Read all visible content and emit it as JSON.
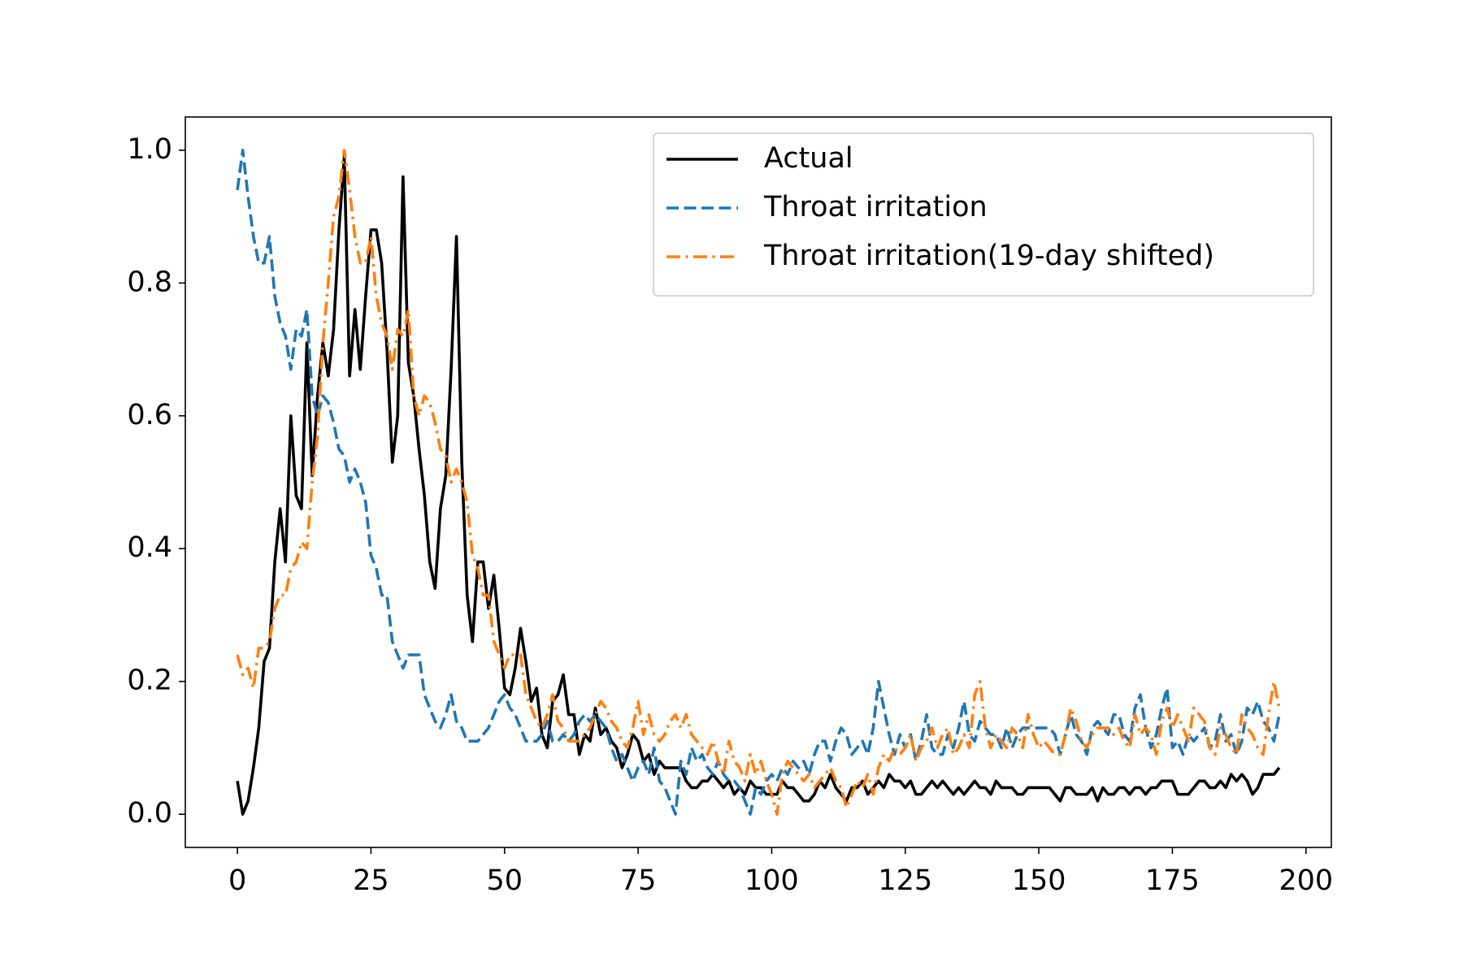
{
  "chart_data": {
    "type": "line",
    "legend": "upper right",
    "grid": false,
    "xlim": [
      -9.75,
      204.75
    ],
    "ylim": [
      -0.05,
      1.05
    ],
    "xticks": [
      0,
      25,
      50,
      75,
      100,
      125,
      150,
      175,
      200
    ],
    "yticks": [
      {
        "value": 0,
        "label": "0.0"
      },
      {
        "value": 0.2,
        "label": "0.2"
      },
      {
        "value": 0.4,
        "label": "0.4"
      },
      {
        "value": 0.6,
        "label": "0.6"
      },
      {
        "value": 0.8,
        "label": "0.8"
      },
      {
        "value": 1,
        "label": "1.0"
      }
    ],
    "x": [
      0,
      1,
      2,
      3,
      4,
      5,
      6,
      7,
      8,
      9,
      10,
      11,
      12,
      13,
      14,
      15,
      16,
      17,
      18,
      19,
      20,
      21,
      22,
      23,
      24,
      25,
      26,
      27,
      28,
      29,
      30,
      31,
      32,
      33,
      34,
      35,
      36,
      37,
      38,
      39,
      40,
      41,
      42,
      43,
      44,
      45,
      46,
      47,
      48,
      49,
      50,
      51,
      52,
      53,
      54,
      55,
      56,
      57,
      58,
      59,
      60,
      61,
      62,
      63,
      64,
      65,
      66,
      67,
      68,
      69,
      70,
      71,
      72,
      73,
      74,
      75,
      76,
      77,
      78,
      79,
      80,
      81,
      82,
      83,
      84,
      85,
      86,
      87,
      88,
      89,
      90,
      91,
      92,
      93,
      94,
      95,
      96,
      97,
      98,
      99,
      100,
      101,
      102,
      103,
      104,
      105,
      106,
      107,
      108,
      109,
      110,
      111,
      112,
      113,
      114,
      115,
      116,
      117,
      118,
      119,
      120,
      121,
      122,
      123,
      124,
      125,
      126,
      127,
      128,
      129,
      130,
      131,
      132,
      133,
      134,
      135,
      136,
      137,
      138,
      139,
      140,
      141,
      142,
      143,
      144,
      145,
      146,
      147,
      148,
      149,
      150,
      151,
      152,
      153,
      154,
      155,
      156,
      157,
      158,
      159,
      160,
      161,
      162,
      163,
      164,
      165,
      166,
      167,
      168,
      169,
      170,
      171,
      172,
      173,
      174,
      175,
      176,
      177,
      178,
      179,
      180,
      181,
      182,
      183,
      184,
      185,
      186,
      187,
      188,
      189,
      190,
      191,
      192,
      193,
      194,
      195
    ],
    "series": [
      {
        "name": "Actual",
        "color": "#000000",
        "dash": "solid",
        "values": [
          0.05,
          0.0,
          0.02,
          0.07,
          0.13,
          0.23,
          0.25,
          0.38,
          0.46,
          0.38,
          0.6,
          0.48,
          0.46,
          0.71,
          0.51,
          0.63,
          0.71,
          0.66,
          0.73,
          0.88,
          0.99,
          0.66,
          0.76,
          0.67,
          0.78,
          0.88,
          0.88,
          0.83,
          0.7,
          0.53,
          0.6,
          0.96,
          0.68,
          0.63,
          0.55,
          0.48,
          0.38,
          0.34,
          0.46,
          0.51,
          0.67,
          0.87,
          0.53,
          0.33,
          0.26,
          0.38,
          0.38,
          0.31,
          0.36,
          0.28,
          0.19,
          0.18,
          0.22,
          0.28,
          0.23,
          0.17,
          0.19,
          0.12,
          0.1,
          0.17,
          0.18,
          0.21,
          0.15,
          0.15,
          0.09,
          0.12,
          0.11,
          0.16,
          0.12,
          0.13,
          0.11,
          0.1,
          0.07,
          0.09,
          0.12,
          0.11,
          0.08,
          0.09,
          0.06,
          0.08,
          0.07,
          0.07,
          0.07,
          0.07,
          0.05,
          0.04,
          0.04,
          0.05,
          0.05,
          0.06,
          0.05,
          0.04,
          0.05,
          0.03,
          0.04,
          0.03,
          0.05,
          0.04,
          0.04,
          0.03,
          0.03,
          0.03,
          0.05,
          0.04,
          0.04,
          0.03,
          0.02,
          0.02,
          0.03,
          0.05,
          0.04,
          0.06,
          0.04,
          0.03,
          0.02,
          0.04,
          0.04,
          0.05,
          0.03,
          0.04,
          0.05,
          0.04,
          0.06,
          0.05,
          0.05,
          0.04,
          0.05,
          0.03,
          0.03,
          0.04,
          0.05,
          0.04,
          0.05,
          0.04,
          0.03,
          0.04,
          0.03,
          0.04,
          0.05,
          0.04,
          0.04,
          0.03,
          0.05,
          0.04,
          0.04,
          0.04,
          0.03,
          0.03,
          0.04,
          0.04,
          0.04,
          0.04,
          0.04,
          0.03,
          0.02,
          0.04,
          0.04,
          0.03,
          0.03,
          0.03,
          0.04,
          0.02,
          0.04,
          0.03,
          0.03,
          0.04,
          0.04,
          0.03,
          0.04,
          0.04,
          0.03,
          0.04,
          0.04,
          0.05,
          0.05,
          0.05,
          0.03,
          0.03,
          0.03,
          0.04,
          0.05,
          0.05,
          0.04,
          0.04,
          0.05,
          0.04,
          0.06,
          0.05,
          0.06,
          0.05,
          0.03,
          0.04,
          0.06,
          0.06,
          0.06,
          0.07
        ]
      },
      {
        "name": "Throat irritation",
        "color": "#1f77b4",
        "dash": "dashed",
        "values": [
          0.94,
          1.0,
          0.93,
          0.87,
          0.83,
          0.83,
          0.87,
          0.78,
          0.74,
          0.72,
          0.67,
          0.73,
          0.72,
          0.76,
          0.63,
          0.6,
          0.63,
          0.62,
          0.59,
          0.55,
          0.54,
          0.5,
          0.52,
          0.5,
          0.47,
          0.39,
          0.37,
          0.33,
          0.33,
          0.26,
          0.24,
          0.22,
          0.24,
          0.24,
          0.24,
          0.18,
          0.16,
          0.14,
          0.13,
          0.15,
          0.18,
          0.14,
          0.13,
          0.11,
          0.11,
          0.11,
          0.12,
          0.13,
          0.15,
          0.17,
          0.18,
          0.16,
          0.15,
          0.13,
          0.11,
          0.11,
          0.11,
          0.12,
          0.14,
          0.11,
          0.11,
          0.12,
          0.11,
          0.12,
          0.14,
          0.15,
          0.14,
          0.15,
          0.14,
          0.13,
          0.1,
          0.08,
          0.09,
          0.07,
          0.05,
          0.07,
          0.08,
          0.06,
          0.1,
          0.05,
          0.04,
          0.02,
          0.0,
          0.08,
          0.06,
          0.1,
          0.08,
          0.09,
          0.07,
          0.06,
          0.08,
          0.06,
          0.05,
          0.05,
          0.04,
          0.02,
          0.0,
          0.04,
          0.03,
          0.05,
          0.06,
          0.05,
          0.07,
          0.06,
          0.08,
          0.07,
          0.08,
          0.06,
          0.09,
          0.11,
          0.11,
          0.08,
          0.11,
          0.13,
          0.12,
          0.09,
          0.1,
          0.11,
          0.09,
          0.13,
          0.2,
          0.16,
          0.12,
          0.09,
          0.12,
          0.1,
          0.12,
          0.08,
          0.11,
          0.15,
          0.1,
          0.09,
          0.09,
          0.12,
          0.1,
          0.13,
          0.17,
          0.12,
          0.11,
          0.14,
          0.13,
          0.12,
          0.12,
          0.1,
          0.13,
          0.1,
          0.12,
          0.13,
          0.13,
          0.13,
          0.13,
          0.13,
          0.13,
          0.12,
          0.09,
          0.12,
          0.15,
          0.12,
          0.11,
          0.09,
          0.13,
          0.14,
          0.13,
          0.12,
          0.15,
          0.15,
          0.12,
          0.11,
          0.16,
          0.18,
          0.13,
          0.1,
          0.12,
          0.16,
          0.19,
          0.1,
          0.11,
          0.09,
          0.12,
          0.11,
          0.12,
          0.13,
          0.1,
          0.11,
          0.15,
          0.11,
          0.12,
          0.09,
          0.11,
          0.16,
          0.15,
          0.17,
          0.14,
          0.13,
          0.11,
          0.15
        ]
      },
      {
        "name": "Throat irritation(19-day shifted)",
        "color": "#ff7f0e",
        "dash": "dashdot",
        "values": [
          0.24,
          0.21,
          0.22,
          0.19,
          0.25,
          0.25,
          0.26,
          0.31,
          0.33,
          0.33,
          0.37,
          0.38,
          0.41,
          0.4,
          0.5,
          0.57,
          0.71,
          0.8,
          0.9,
          0.93,
          1.0,
          0.94,
          0.87,
          0.83,
          0.83,
          0.87,
          0.78,
          0.74,
          0.72,
          0.67,
          0.73,
          0.72,
          0.76,
          0.63,
          0.6,
          0.63,
          0.62,
          0.59,
          0.55,
          0.54,
          0.5,
          0.52,
          0.5,
          0.47,
          0.39,
          0.37,
          0.33,
          0.33,
          0.26,
          0.24,
          0.22,
          0.24,
          0.24,
          0.24,
          0.18,
          0.16,
          0.14,
          0.13,
          0.15,
          0.18,
          0.14,
          0.13,
          0.11,
          0.11,
          0.11,
          0.12,
          0.13,
          0.15,
          0.17,
          0.16,
          0.14,
          0.13,
          0.11,
          0.1,
          0.13,
          0.17,
          0.12,
          0.15,
          0.12,
          0.11,
          0.12,
          0.14,
          0.15,
          0.13,
          0.15,
          0.12,
          0.11,
          0.1,
          0.09,
          0.11,
          0.08,
          0.06,
          0.11,
          0.08,
          0.07,
          0.05,
          0.09,
          0.06,
          0.08,
          0.05,
          0.03,
          0.0,
          0.06,
          0.08,
          0.07,
          0.06,
          0.05,
          0.06,
          0.04,
          0.05,
          0.06,
          0.07,
          0.05,
          0.04,
          0.01,
          0.03,
          0.05,
          0.04,
          0.06,
          0.03,
          0.07,
          0.09,
          0.08,
          0.1,
          0.09,
          0.1,
          0.12,
          0.08,
          0.1,
          0.11,
          0.13,
          0.1,
          0.12,
          0.13,
          0.09,
          0.1,
          0.12,
          0.1,
          0.18,
          0.2,
          0.13,
          0.1,
          0.12,
          0.11,
          0.1,
          0.13,
          0.12,
          0.1,
          0.15,
          0.12,
          0.1,
          0.11,
          0.1,
          0.09,
          0.09,
          0.12,
          0.16,
          0.14,
          0.11,
          0.1,
          0.12,
          0.13,
          0.13,
          0.13,
          0.12,
          0.13,
          0.11,
          0.1,
          0.15,
          0.12,
          0.13,
          0.12,
          0.09,
          0.14,
          0.16,
          0.13,
          0.15,
          0.13,
          0.11,
          0.16,
          0.15,
          0.14,
          0.1,
          0.09,
          0.13,
          0.12,
          0.1,
          0.09,
          0.15,
          0.13,
          0.12,
          0.1,
          0.09,
          0.15,
          0.2,
          0.16
        ]
      }
    ]
  }
}
